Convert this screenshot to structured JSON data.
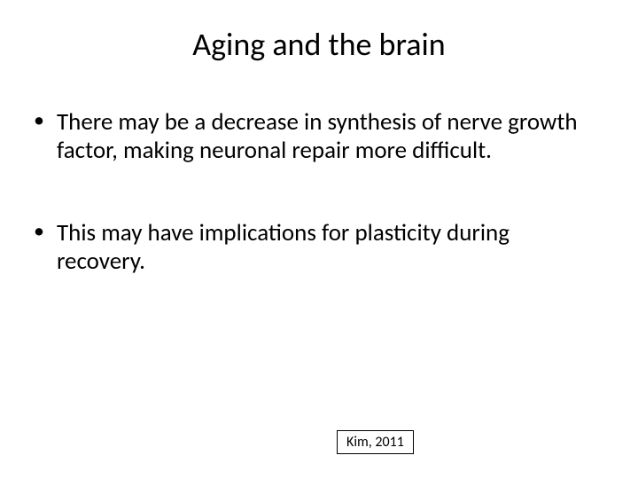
{
  "slide": {
    "title": "Aging and the brain",
    "bullets": [
      "There may be a decrease in synthesis of nerve growth factor, making neuronal repair more difficult.",
      "This may have implications for plasticity during recovery."
    ],
    "citation": "Kim, 2011"
  },
  "styling": {
    "background_color": "#ffffff",
    "text_color": "#000000",
    "title_fontsize": 36,
    "bullet_fontsize": 27,
    "citation_fontsize": 16,
    "font_family": "Calibri",
    "citation_border_color": "#000000"
  }
}
